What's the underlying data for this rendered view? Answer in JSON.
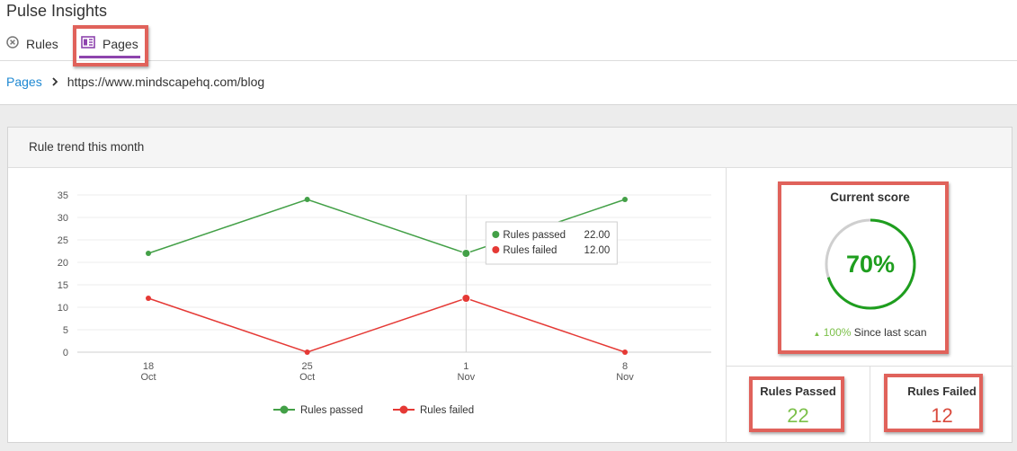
{
  "app": {
    "title": "Pulse Insights"
  },
  "tabs": [
    {
      "label": "Rules",
      "icon": "circle-x-icon",
      "active": false
    },
    {
      "label": "Pages",
      "icon": "page-layout-icon",
      "active": true
    }
  ],
  "breadcrumb": {
    "link": "Pages",
    "current": "https://www.mindscapehq.com/blog"
  },
  "panel": {
    "title": "Rule trend this month"
  },
  "colors": {
    "passed": "#43a047",
    "failed": "#e53935",
    "accent": "#8e44ad",
    "link": "#1e88d2",
    "highlight": "#e0625b"
  },
  "chart_data": {
    "type": "line",
    "categories": [
      [
        "18",
        "Oct"
      ],
      [
        "25",
        "Oct"
      ],
      [
        "1",
        "Nov"
      ],
      [
        "8",
        "Nov"
      ]
    ],
    "series": [
      {
        "name": "Rules passed",
        "values": [
          22,
          34,
          22,
          34
        ],
        "color": "#43a047"
      },
      {
        "name": "Rules failed",
        "values": [
          12,
          0,
          12,
          0
        ],
        "color": "#e53935"
      }
    ],
    "yticks": [
      0,
      5,
      10,
      15,
      20,
      25,
      30,
      35
    ],
    "ylim": [
      0,
      35
    ],
    "grid": true,
    "legend": "bottom",
    "tooltip": {
      "category_index": 2,
      "rows": [
        {
          "name": "Rules passed",
          "value": "22.00"
        },
        {
          "name": "Rules failed",
          "value": "12.00"
        }
      ]
    }
  },
  "score": {
    "title": "Current score",
    "value": "70%",
    "percent": 70,
    "change_arrow": "▲",
    "change_value": "100%",
    "change_text": "Since last scan"
  },
  "stats": {
    "passed": {
      "label": "Rules Passed",
      "value": "22"
    },
    "failed": {
      "label": "Rules Failed",
      "value": "12"
    }
  }
}
